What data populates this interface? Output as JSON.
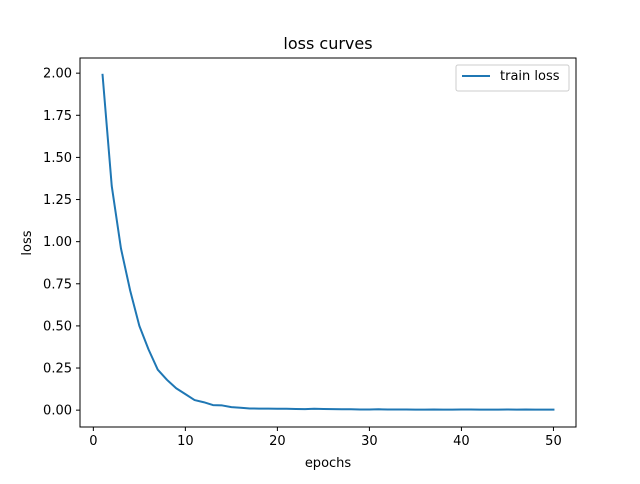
{
  "chart_data": {
    "type": "line",
    "title": "loss curves",
    "xlabel": "epochs",
    "ylabel": "loss",
    "xlim": [
      -1.45,
      52.45
    ],
    "ylim": [
      -0.1,
      2.09
    ],
    "xticks": [
      0,
      10,
      20,
      30,
      40,
      50
    ],
    "xtick_labels": [
      "0",
      "10",
      "20",
      "30",
      "40",
      "50"
    ],
    "yticks": [
      0,
      0.25,
      0.5,
      0.75,
      1.0,
      1.25,
      1.5,
      1.75,
      2.0
    ],
    "ytick_labels": [
      "0.00",
      "0.25",
      "0.50",
      "0.75",
      "1.00",
      "1.25",
      "1.50",
      "1.75",
      "2.00"
    ],
    "grid": false,
    "legend_position": "upper right",
    "series": [
      {
        "name": "train loss",
        "color": "#1f77b4",
        "x": [
          1,
          2,
          3,
          4,
          5,
          6,
          7,
          8,
          9,
          10,
          11,
          12,
          13,
          14,
          15,
          16,
          17,
          18,
          19,
          20,
          21,
          22,
          23,
          24,
          25,
          26,
          27,
          28,
          29,
          30,
          31,
          32,
          33,
          34,
          35,
          36,
          37,
          38,
          39,
          40,
          41,
          42,
          43,
          44,
          45,
          46,
          47,
          48,
          49,
          50
        ],
        "y": [
          1.99,
          1.33,
          0.96,
          0.71,
          0.5,
          0.36,
          0.24,
          0.18,
          0.13,
          0.095,
          0.06,
          0.047,
          0.03,
          0.028,
          0.018,
          0.014,
          0.01,
          0.009,
          0.009,
          0.008,
          0.008,
          0.007,
          0.006,
          0.008,
          0.007,
          0.006,
          0.005,
          0.005,
          0.004,
          0.004,
          0.005,
          0.004,
          0.004,
          0.004,
          0.003,
          0.003,
          0.004,
          0.003,
          0.003,
          0.004,
          0.004,
          0.003,
          0.003,
          0.003,
          0.004,
          0.003,
          0.004,
          0.003,
          0.003,
          0.003
        ]
      }
    ]
  }
}
